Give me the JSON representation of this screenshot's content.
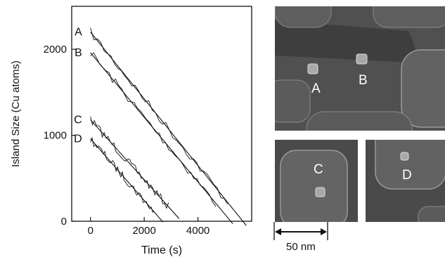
{
  "chart_data": {
    "type": "line",
    "xlabel": "Time (s)",
    "ylabel": "Island Size (Cu atoms)",
    "xlim": [
      -700,
      6000
    ],
    "ylim": [
      0,
      2500
    ],
    "xticks": [
      0,
      2000,
      4000
    ],
    "yticks": [
      0,
      1000,
      2000
    ],
    "xtick_labels": [
      "0",
      "2000",
      "4000"
    ],
    "ytick_labels": [
      "0",
      "1000",
      "2000"
    ],
    "grid": false,
    "series": [
      {
        "name": "A",
        "x": [
          0,
          5800
        ],
        "y": [
          2200,
          -50
        ]
      },
      {
        "name": "B",
        "x": [
          0,
          5300
        ],
        "y": [
          1960,
          -30
        ]
      },
      {
        "name": "C",
        "x": [
          0,
          3300
        ],
        "y": [
          1180,
          30
        ]
      },
      {
        "name": "D",
        "x": [
          0,
          2700
        ],
        "y": [
          960,
          -10
        ]
      }
    ]
  },
  "panels": {
    "top_labels": [
      "A",
      "B"
    ],
    "bottom_left_label": "C",
    "bottom_right_label": "D",
    "scale_bar_label": "50 nm"
  }
}
